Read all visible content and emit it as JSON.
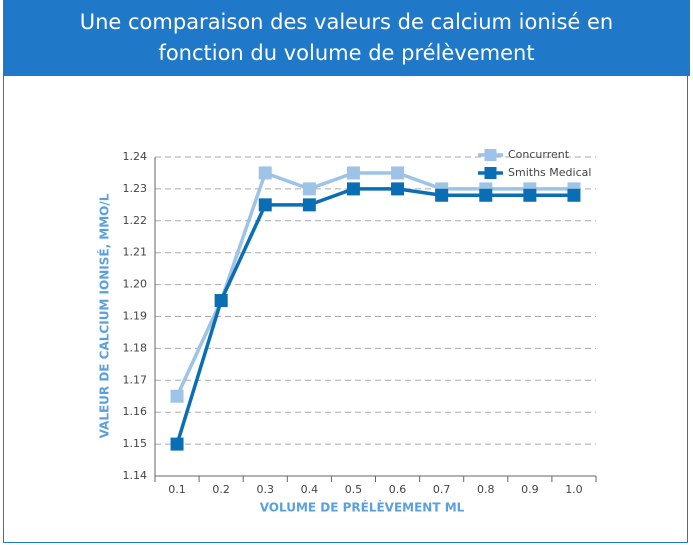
{
  "chart_data": {
    "type": "line",
    "title": "Une comparaison des valeurs de calcium ionisé en fonction du volume de prélèvement",
    "x_label": "VOLUME DE PRÉLÈVEMENT ML",
    "y_label": "VALEUR DE CALCIUM IONISÉ, MMO/L",
    "categories": [
      "0.1",
      "0.2",
      "0.3",
      "0.4",
      "0.5",
      "0.6",
      "0.7",
      "0.8",
      "0.9",
      "1.0"
    ],
    "series": [
      {
        "name": "Concurrent",
        "color": "#9dc3e6",
        "values": [
          1.165,
          1.195,
          1.235,
          1.23,
          1.235,
          1.235,
          1.23,
          1.23,
          1.23,
          1.23
        ]
      },
      {
        "name": "Smiths Medical",
        "color": "#0a6eb4",
        "values": [
          1.15,
          1.195,
          1.225,
          1.225,
          1.23,
          1.23,
          1.228,
          1.228,
          1.228,
          1.228
        ]
      }
    ],
    "ylim": [
      1.14,
      1.24
    ],
    "yticks": [
      1.14,
      1.15,
      1.16,
      1.17,
      1.18,
      1.19,
      {
        "value": 1.2,
        "label": "1.20"
      },
      1.21,
      1.22,
      1.23,
      1.24
    ],
    "grid": true,
    "legend": "top-right"
  }
}
